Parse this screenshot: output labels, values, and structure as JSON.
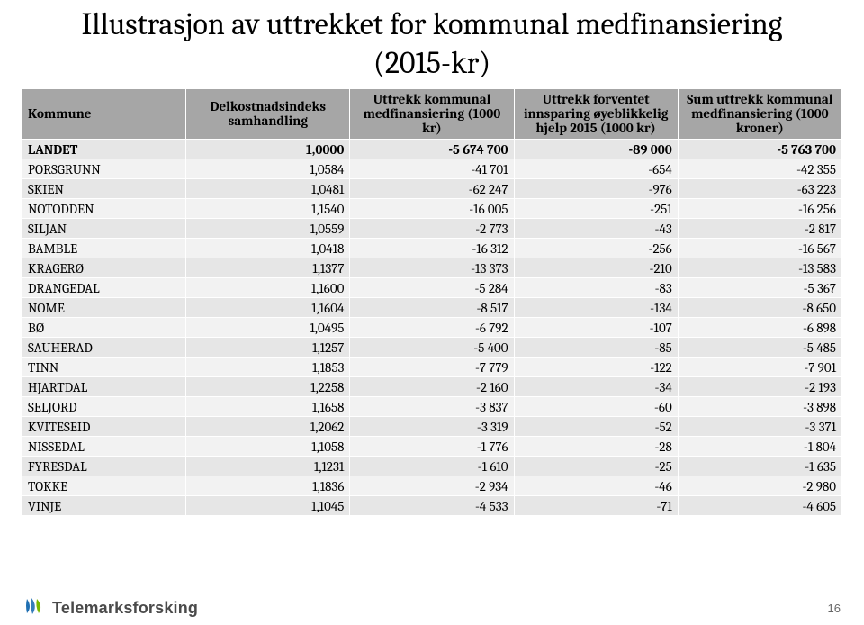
{
  "title": "Illustrasjon av uttrekket for kommunal medfinansiering",
  "subtitle": "(2015-kr)",
  "table": {
    "columns": [
      "Kommune",
      "Delkostnadsindeks samhandling",
      "Uttrekk kommunal medfinansiering (1000 kr)",
      "Uttrekk forventet innsparing øyeblikkelig hjelp 2015 (1000 kr)",
      "Sum uttrekk kommunal medfinansiering (1000 kroner)"
    ],
    "header_bg": "#a6a6a6",
    "row_bg_odd": "#e6e6e6",
    "row_bg_even": "#f2f2f2",
    "border_color": "#ffffff",
    "col_widths_percent": [
      20,
      20,
      20,
      20,
      20
    ],
    "fontsize": 15,
    "header_fontsize": 15,
    "rows": [
      {
        "name": "LANDET",
        "idx": "1,0000",
        "uttrekk": "-5 674 700",
        "innsp": "-89 000",
        "sum": "-5 763 700",
        "bold": true
      },
      {
        "name": "PORSGRUNN",
        "idx": "1,0584",
        "uttrekk": "-41 701",
        "innsp": "-654",
        "sum": "-42 355"
      },
      {
        "name": "SKIEN",
        "idx": "1,0481",
        "uttrekk": "-62 247",
        "innsp": "-976",
        "sum": "-63 223"
      },
      {
        "name": "NOTODDEN",
        "idx": "1,1540",
        "uttrekk": "-16 005",
        "innsp": "-251",
        "sum": "-16 256"
      },
      {
        "name": "SILJAN",
        "idx": "1,0559",
        "uttrekk": "-2 773",
        "innsp": "-43",
        "sum": "-2 817"
      },
      {
        "name": "BAMBLE",
        "idx": "1,0418",
        "uttrekk": "-16 312",
        "innsp": "-256",
        "sum": "-16 567"
      },
      {
        "name": "KRAGERØ",
        "idx": "1,1377",
        "uttrekk": "-13 373",
        "innsp": "-210",
        "sum": "-13 583"
      },
      {
        "name": "DRANGEDAL",
        "idx": "1,1600",
        "uttrekk": "-5 284",
        "innsp": "-83",
        "sum": "-5 367"
      },
      {
        "name": "NOME",
        "idx": "1,1604",
        "uttrekk": "-8 517",
        "innsp": "-134",
        "sum": "-8 650"
      },
      {
        "name": "BØ",
        "idx": "1,0495",
        "uttrekk": "-6 792",
        "innsp": "-107",
        "sum": "-6 898"
      },
      {
        "name": "SAUHERAD",
        "idx": "1,1257",
        "uttrekk": "-5 400",
        "innsp": "-85",
        "sum": "-5 485"
      },
      {
        "name": "TINN",
        "idx": "1,1853",
        "uttrekk": "-7 779",
        "innsp": "-122",
        "sum": "-7 901"
      },
      {
        "name": "HJARTDAL",
        "idx": "1,2258",
        "uttrekk": "-2 160",
        "innsp": "-34",
        "sum": "-2 193"
      },
      {
        "name": "SELJORD",
        "idx": "1,1658",
        "uttrekk": "-3 837",
        "innsp": "-60",
        "sum": "-3 898"
      },
      {
        "name": "KVITESEID",
        "idx": "1,2062",
        "uttrekk": "-3 319",
        "innsp": "-52",
        "sum": "-3 371"
      },
      {
        "name": "NISSEDAL",
        "idx": "1,1058",
        "uttrekk": "-1 776",
        "innsp": "-28",
        "sum": "-1 804"
      },
      {
        "name": "FYRESDAL",
        "idx": "1,1231",
        "uttrekk": "-1 610",
        "innsp": "-25",
        "sum": "-1 635"
      },
      {
        "name": "TOKKE",
        "idx": "1,1836",
        "uttrekk": "-2 934",
        "innsp": "-46",
        "sum": "-2 980"
      },
      {
        "name": "VINJE",
        "idx": "1,1045",
        "uttrekk": "-4 533",
        "innsp": "-71",
        "sum": "-4 605"
      }
    ]
  },
  "footer": {
    "logo_colors": {
      "blue": "#1f6fb2",
      "green": "#7ab800"
    },
    "logo_text": "Telemarksforsking",
    "logo_text_color": "#4a4a4a",
    "page_number": "16",
    "page_number_color": "#666666"
  }
}
